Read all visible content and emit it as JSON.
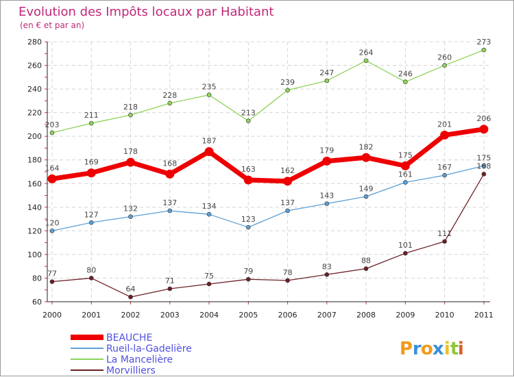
{
  "chart_data": {
    "type": "line",
    "title": "Evolution des Impôts locaux par Habitant",
    "subtitle": "(en € et par an)",
    "x": [
      "2000",
      "2001",
      "2002",
      "2003",
      "2004",
      "2005",
      "2006",
      "2007",
      "2008",
      "2009",
      "2010",
      "2011"
    ],
    "yticks": [
      60,
      80,
      100,
      120,
      140,
      160,
      180,
      200,
      220,
      240,
      260,
      280
    ],
    "ylim": [
      60,
      280
    ],
    "grid": true,
    "legend_position": "bottom-left",
    "series": [
      {
        "name": "La Mancelière",
        "color": "#8fd35a",
        "values": [
          203,
          211,
          218,
          228,
          235,
          213,
          239,
          247,
          264,
          246,
          260,
          273
        ]
      },
      {
        "name": "Rueil-la-Gadelière",
        "color": "#5b9fd5",
        "values": [
          120,
          127,
          132,
          137,
          134,
          123,
          137,
          143,
          149,
          161,
          167,
          175
        ]
      },
      {
        "name": "Morvilliers",
        "color": "#6b1f25",
        "values": [
          77,
          80,
          64,
          71,
          75,
          79,
          78,
          83,
          88,
          101,
          111,
          168
        ]
      },
      {
        "name": "BEAUCHE",
        "color": "#ee0000",
        "values": [
          164,
          169,
          178,
          168,
          187,
          163,
          162,
          179,
          182,
          175,
          201,
          206
        ]
      }
    ],
    "legend_order": [
      "BEAUCHE",
      "Rueil-la-Gadelière",
      "La Mancelière",
      "Morvilliers"
    ]
  },
  "logo": {
    "letters": [
      "P",
      "r",
      "o",
      "x",
      "i",
      "t",
      "i"
    ],
    "colors": [
      "#f29a1a",
      "#3a8fd8",
      "#f29a1a",
      "#3a8fd8",
      "#e9c22a",
      "#8fc63d",
      "#e05a2a"
    ]
  }
}
